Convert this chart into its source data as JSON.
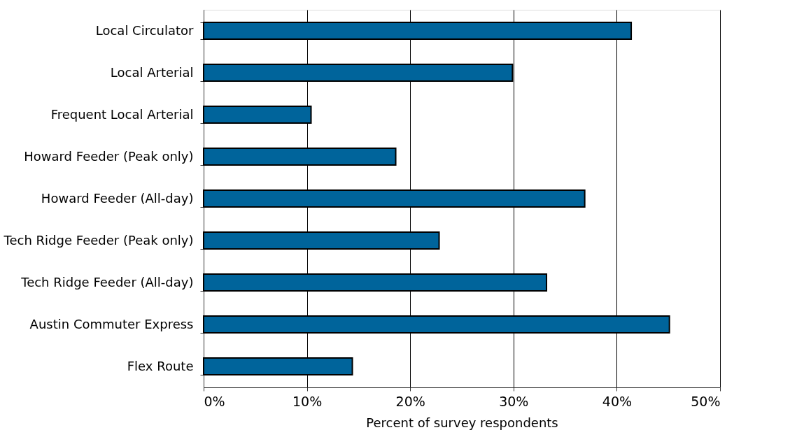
{
  "chart_data": {
    "type": "bar",
    "orientation": "horizontal",
    "xlabel": "Percent of survey respondents",
    "categories": [
      "Local Circulator",
      "Local Arterial",
      "Frequent Local Arterial",
      "Howard Feeder (Peak only)",
      "Howard Feeder (All-day)",
      "Tech Ridge Feeder (Peak only)",
      "Tech Ridge Feeder (All-day)",
      "Austin Commuter Express",
      "Flex Route"
    ],
    "values": [
      41.4,
      29.9,
      10.4,
      18.6,
      36.9,
      22.8,
      33.2,
      45.1,
      14.4
    ],
    "color": "#00649b",
    "xlim": [
      0,
      50
    ],
    "xticks": [
      {
        "value": 0,
        "label": "0%"
      },
      {
        "value": 10,
        "label": "10%"
      },
      {
        "value": 20,
        "label": "20%"
      },
      {
        "value": 30,
        "label": "30%"
      },
      {
        "value": 40,
        "label": "40%"
      },
      {
        "value": 50,
        "label": "50%"
      }
    ],
    "grid": "x"
  }
}
